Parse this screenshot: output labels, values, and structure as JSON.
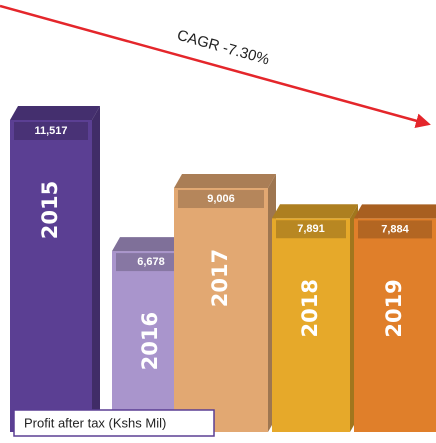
{
  "chart_data": {
    "type": "bar3d",
    "annotation": "CAGR -7.30%",
    "caption": "Profit after tax (Kshs Mil)",
    "categories": [
      "2015",
      "2016",
      "2017",
      "2018",
      "2019"
    ],
    "values": [
      11517,
      6678,
      9006,
      7891,
      7884
    ],
    "value_labels": [
      "11,517",
      "6,678",
      "9,006",
      "7,891",
      "7,884"
    ],
    "colors": [
      "#5b3f93",
      "#a995cc",
      "#e2a872",
      "#e6a92a",
      "#e07f2a"
    ]
  }
}
